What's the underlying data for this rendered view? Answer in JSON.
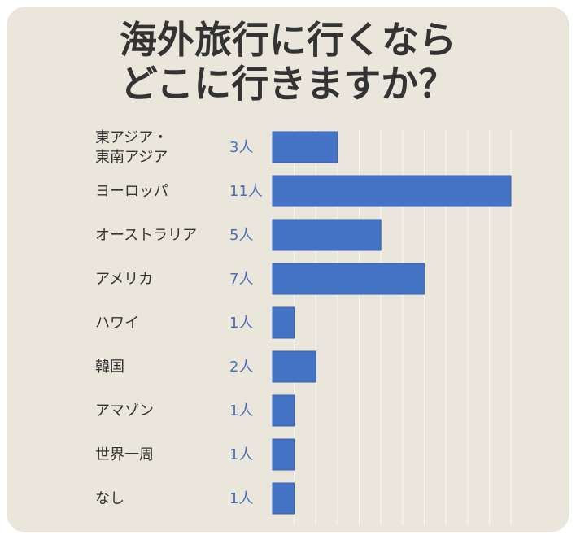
{
  "chart_data": {
    "type": "bar",
    "orientation": "horizontal",
    "title": [
      "海外旅行に行くなら",
      "どこに行きますか？"
    ],
    "categories": [
      [
        "東アジア・",
        "東南アジア"
      ],
      [
        "ヨーロッパ"
      ],
      [
        "オーストラリア"
      ],
      [
        "アメリカ"
      ],
      [
        "ハワイ"
      ],
      [
        "韓国"
      ],
      [
        "アマゾン"
      ],
      [
        "世界一周"
      ],
      [
        "なし"
      ]
    ],
    "values": [
      3,
      11,
      5,
      7,
      1,
      2,
      1,
      1,
      1
    ],
    "value_labels": [
      "3人",
      "11人",
      "5人",
      "7人",
      "1人",
      "2人",
      "1人",
      "1人",
      "1人"
    ],
    "xlim": [
      0,
      11
    ],
    "colors": {
      "bar": "#4472c4",
      "value_text": "#4a6fb5",
      "background": "#eae6dc"
    }
  }
}
